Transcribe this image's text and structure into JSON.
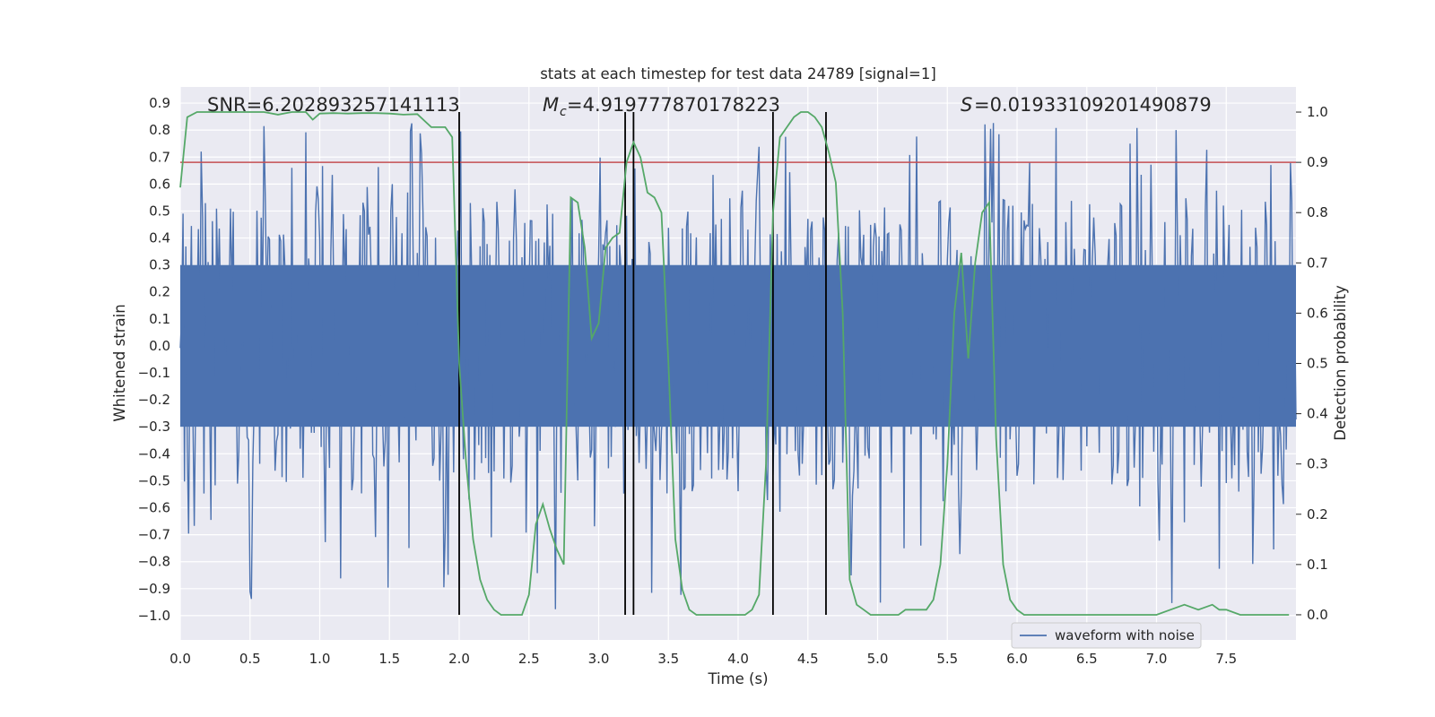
{
  "chart_data": {
    "type": "line",
    "title": "stats at each timestep for test data 24789 [signal=1]",
    "xlabel": "Time (s)",
    "ylabel": "Whitened strain",
    "y2label": "Detection probability",
    "xlim": [
      0,
      8
    ],
    "ylim": [
      -1.09,
      0.96
    ],
    "y2lim": [
      -0.05,
      1.05
    ],
    "xticks": [
      0.0,
      0.5,
      1.0,
      1.5,
      2.0,
      2.5,
      3.0,
      3.5,
      4.0,
      4.5,
      5.0,
      5.5,
      6.0,
      6.5,
      7.0,
      7.5
    ],
    "xtick_labels": [
      "0.0",
      "0.5",
      "1.0",
      "1.5",
      "2.0",
      "2.5",
      "3.0",
      "3.5",
      "4.0",
      "4.5",
      "5.0",
      "5.5",
      "6.0",
      "6.5",
      "7.0",
      "7.5"
    ],
    "yticks": [
      0.9,
      0.8,
      0.7,
      0.6,
      0.5,
      0.4,
      0.3,
      0.2,
      0.1,
      0.0,
      -0.1,
      -0.2,
      -0.3,
      -0.4,
      -0.5,
      -0.6,
      -0.7,
      -0.8,
      -0.9,
      -1.0
    ],
    "ytick_labels": [
      "0.9",
      "0.8",
      "0.7",
      "0.6",
      "0.5",
      "0.4",
      "0.3",
      "0.2",
      "0.1",
      "0.0",
      "−0.1",
      "−0.2",
      "−0.3",
      "−0.4",
      "−0.5",
      "−0.6",
      "−0.7",
      "−0.8",
      "−0.9",
      "−1.0"
    ],
    "y2ticks": [
      1.0,
      0.9,
      0.8,
      0.7,
      0.6,
      0.5,
      0.4,
      0.3,
      0.2,
      0.1,
      0.0
    ],
    "y2tick_labels": [
      "1.0",
      "0.9",
      "0.8",
      "0.7",
      "0.6",
      "0.5",
      "0.4",
      "0.3",
      "0.2",
      "0.1",
      "0.0"
    ],
    "grid": true,
    "legend_placement": "lower-right",
    "annotations": {
      "snr": "SNR=6.202893257141113",
      "mc": "=4.919777870178223",
      "s": "=0.019331092014908 79"
    },
    "threshold": {
      "value": 0.9,
      "axis": "y2",
      "color": "#c44e52"
    },
    "vlines": [
      2.0,
      3.19,
      3.25,
      4.25,
      4.63
    ],
    "series": [
      {
        "name": "waveform with noise",
        "axis": "y",
        "color": "#4c72b0",
        "kind": "noise",
        "sample_count": 800,
        "bulk_amplitude": 0.3,
        "peak_amplitude": [
          0.85,
          -1.0
        ]
      },
      {
        "name": "",
        "axis": "y2",
        "color": "#55a868",
        "x": [
          0.0,
          0.05,
          0.12,
          0.2,
          0.3,
          0.4,
          0.5,
          0.6,
          0.7,
          0.8,
          0.9,
          0.95,
          1.0,
          1.1,
          1.2,
          1.3,
          1.4,
          1.5,
          1.6,
          1.7,
          1.8,
          1.85,
          1.9,
          1.95,
          2.0,
          2.05,
          2.1,
          2.15,
          2.2,
          2.25,
          2.3,
          2.35,
          2.4,
          2.45,
          2.5,
          2.55,
          2.6,
          2.65,
          2.7,
          2.75,
          2.8,
          2.85,
          2.9,
          2.95,
          3.0,
          3.05,
          3.1,
          3.15,
          3.2,
          3.25,
          3.3,
          3.35,
          3.4,
          3.45,
          3.5,
          3.55,
          3.6,
          3.65,
          3.7,
          3.75,
          3.8,
          3.85,
          3.9,
          3.95,
          4.0,
          4.05,
          4.1,
          4.15,
          4.2,
          4.25,
          4.3,
          4.35,
          4.4,
          4.45,
          4.5,
          4.55,
          4.6,
          4.65,
          4.7,
          4.75,
          4.8,
          4.85,
          4.9,
          4.95,
          5.0,
          5.05,
          5.1,
          5.15,
          5.2,
          5.25,
          5.3,
          5.35,
          5.4,
          5.45,
          5.5,
          5.55,
          5.6,
          5.65,
          5.7,
          5.75,
          5.8,
          5.85,
          5.9,
          5.95,
          6.0,
          6.05,
          6.1,
          6.15,
          6.2,
          6.3,
          6.4,
          6.5,
          6.6,
          6.7,
          6.8,
          6.9,
          7.0,
          7.1,
          7.2,
          7.3,
          7.4,
          7.45,
          7.5,
          7.6,
          7.7,
          7.8,
          7.9,
          7.95
        ],
        "y": [
          0.85,
          0.99,
          1.0,
          1.0,
          1.0,
          1.0,
          1.0,
          1.0,
          0.995,
          1.0,
          1.0,
          0.985,
          0.997,
          0.998,
          0.997,
          0.998,
          0.998,
          0.997,
          0.995,
          0.996,
          0.97,
          0.97,
          0.97,
          0.95,
          0.5,
          0.3,
          0.15,
          0.07,
          0.03,
          0.01,
          0.0,
          0.0,
          0.0,
          0.0,
          0.04,
          0.18,
          0.22,
          0.17,
          0.13,
          0.1,
          0.83,
          0.82,
          0.73,
          0.55,
          0.58,
          0.73,
          0.75,
          0.76,
          0.9,
          0.94,
          0.91,
          0.84,
          0.83,
          0.8,
          0.5,
          0.15,
          0.05,
          0.01,
          0.0,
          0.0,
          0.0,
          0.0,
          0.0,
          0.0,
          0.0,
          0.0,
          0.01,
          0.04,
          0.3,
          0.8,
          0.95,
          0.97,
          0.99,
          1.0,
          1.0,
          0.99,
          0.97,
          0.92,
          0.86,
          0.6,
          0.07,
          0.02,
          0.01,
          0.0,
          0.0,
          0.0,
          0.0,
          0.0,
          0.01,
          0.01,
          0.01,
          0.01,
          0.03,
          0.1,
          0.3,
          0.6,
          0.72,
          0.51,
          0.7,
          0.8,
          0.82,
          0.35,
          0.1,
          0.03,
          0.01,
          0.0,
          0.0,
          0.0,
          0.0,
          0.0,
          0.0,
          0.0,
          0.0,
          0.0,
          0.0,
          0.0,
          0.0,
          0.01,
          0.02,
          0.01,
          0.02,
          0.01,
          0.01,
          0.0,
          0.0,
          0.0,
          0.0,
          0.0
        ]
      }
    ]
  }
}
